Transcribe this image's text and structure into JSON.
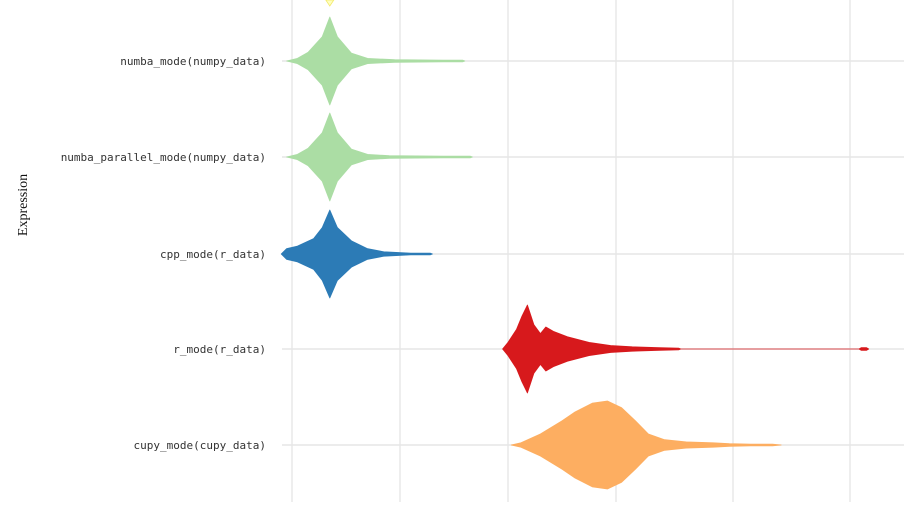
{
  "chart_data": {
    "type": "violin",
    "ylabel": "Expression",
    "xlabel": "",
    "grid": true,
    "legend": "none",
    "categories": [
      "cupy_mode(cupy_data)",
      "r_mode(r_data)",
      "cpp_mode(r_data)",
      "numba_parallel_mode(numpy_data)",
      "numba_mode(numpy_data)"
    ],
    "series": [
      {
        "category": "cupy_mode(cupy_data)",
        "color": "#fdae61",
        "profile": [
          [
            0.03,
            0.0
          ],
          [
            0.12,
            0.05
          ],
          [
            0.3,
            0.25
          ],
          [
            0.5,
            0.55
          ],
          [
            0.62,
            0.75
          ],
          [
            0.78,
            0.95
          ],
          [
            0.92,
            1.0
          ],
          [
            1.05,
            0.85
          ],
          [
            1.18,
            0.55
          ],
          [
            1.3,
            0.25
          ],
          [
            1.45,
            0.12
          ],
          [
            1.65,
            0.07
          ],
          [
            1.9,
            0.05
          ],
          [
            2.05,
            0.03
          ],
          [
            2.25,
            0.02
          ],
          [
            2.45,
            0.02
          ],
          [
            2.53,
            0.0
          ]
        ]
      },
      {
        "category": "r_mode(r_data)",
        "color": "#d7191c",
        "profile": [
          [
            -0.05,
            0.0
          ],
          [
            0.0,
            0.15
          ],
          [
            0.08,
            0.45
          ],
          [
            0.13,
            0.75
          ],
          [
            0.18,
            1.0
          ],
          [
            0.24,
            0.55
          ],
          [
            0.3,
            0.35
          ],
          [
            0.35,
            0.5
          ],
          [
            0.42,
            0.4
          ],
          [
            0.55,
            0.28
          ],
          [
            0.75,
            0.15
          ],
          [
            0.95,
            0.08
          ],
          [
            1.15,
            0.05
          ],
          [
            1.4,
            0.03
          ],
          [
            1.58,
            0.02
          ],
          [
            1.6,
            0.0
          ],
          [
            3.25,
            0.0
          ],
          [
            3.27,
            0.03
          ],
          [
            3.32,
            0.03
          ],
          [
            3.34,
            0.0
          ]
        ]
      },
      {
        "category": "cpp_mode(r_data)",
        "color": "#2c7bb6",
        "profile": [
          [
            -2.1,
            0.0
          ],
          [
            -2.05,
            0.12
          ],
          [
            -1.95,
            0.18
          ],
          [
            -1.8,
            0.35
          ],
          [
            -1.72,
            0.6
          ],
          [
            -1.65,
            1.0
          ],
          [
            -1.58,
            0.6
          ],
          [
            -1.45,
            0.3
          ],
          [
            -1.3,
            0.12
          ],
          [
            -1.15,
            0.05
          ],
          [
            -0.9,
            0.02
          ],
          [
            -0.72,
            0.02
          ],
          [
            -0.7,
            0.0
          ]
        ]
      },
      {
        "category": "numba_parallel_mode(numpy_data)",
        "color": "#abdda4",
        "profile": [
          [
            -2.05,
            0.0
          ],
          [
            -1.95,
            0.06
          ],
          [
            -1.85,
            0.2
          ],
          [
            -1.72,
            0.55
          ],
          [
            -1.65,
            1.0
          ],
          [
            -1.58,
            0.55
          ],
          [
            -1.45,
            0.18
          ],
          [
            -1.3,
            0.06
          ],
          [
            -1.1,
            0.03
          ],
          [
            -0.6,
            0.02
          ],
          [
            -0.35,
            0.02
          ],
          [
            -0.33,
            0.0
          ]
        ]
      },
      {
        "category": "numba_mode(numpy_data)",
        "color": "#abdda4",
        "profile": [
          [
            -2.05,
            0.0
          ],
          [
            -1.95,
            0.06
          ],
          [
            -1.85,
            0.2
          ],
          [
            -1.72,
            0.55
          ],
          [
            -1.65,
            1.0
          ],
          [
            -1.58,
            0.55
          ],
          [
            -1.45,
            0.18
          ],
          [
            -1.3,
            0.06
          ],
          [
            -1.05,
            0.03
          ],
          [
            -0.6,
            0.02
          ],
          [
            -0.42,
            0.02
          ],
          [
            -0.4,
            0.0
          ]
        ]
      }
    ],
    "partial_top_series": {
      "color": "#ffffbf"
    }
  }
}
